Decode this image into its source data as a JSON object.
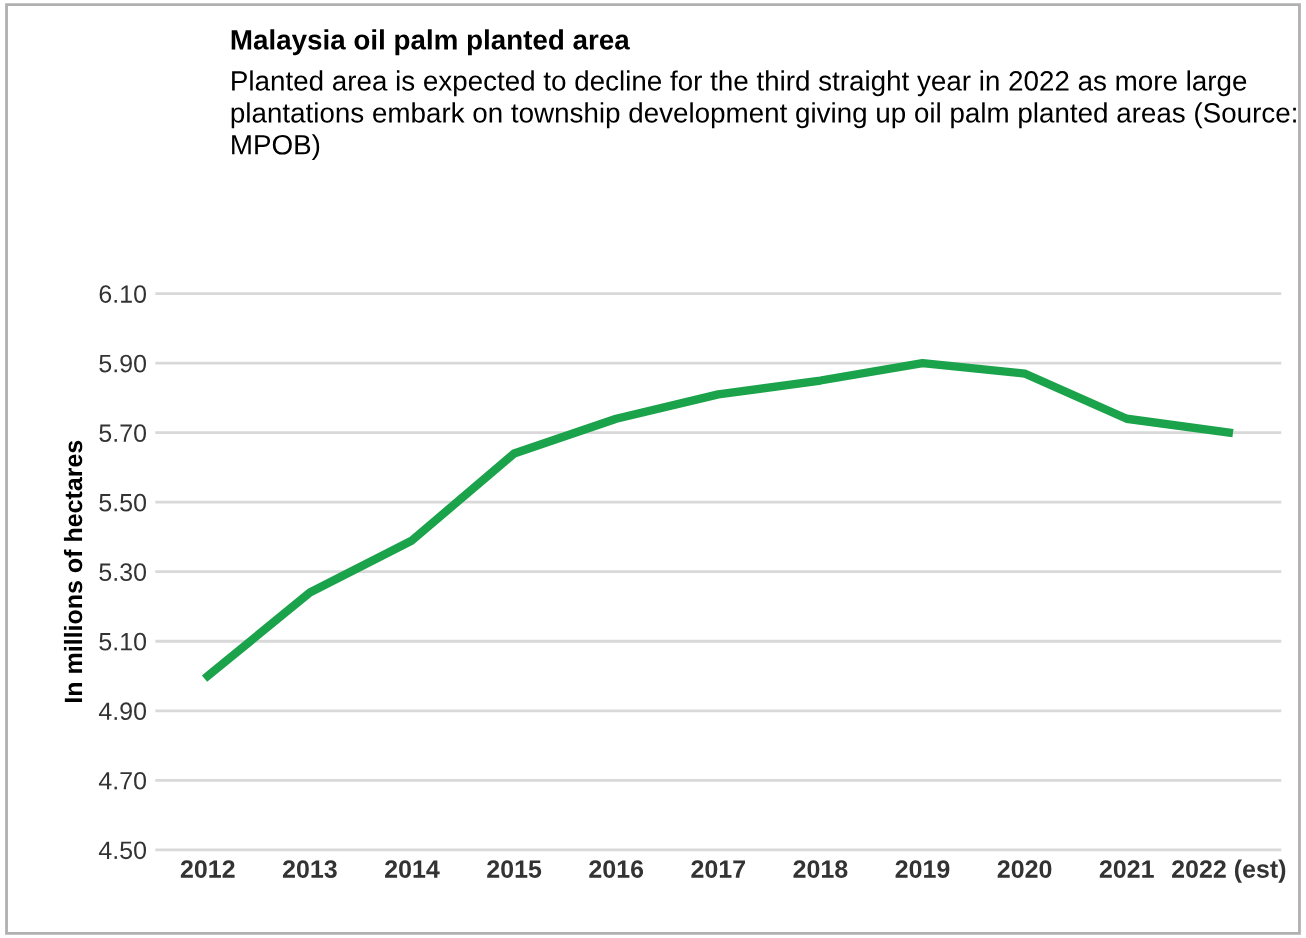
{
  "chart_data": {
    "type": "line",
    "title": "Malaysia oil palm planted area",
    "subtitle": "Planted area is expected to decline for the third straight year in 2022 as more large plantations embark on township development giving up oil palm planted areas (Source: MPOB)",
    "ylabel": "In millions of hectares",
    "categories": [
      "2012",
      "2013",
      "2014",
      "2015",
      "2016",
      "2017",
      "2018",
      "2019",
      "2020",
      "2021",
      "2022 (est)"
    ],
    "series": [
      {
        "color": "#1aa34a",
        "values": [
          5.0,
          5.24,
          5.39,
          5.64,
          5.74,
          5.81,
          5.85,
          5.9,
          5.87,
          5.74,
          5.7
        ]
      }
    ],
    "ylim": [
      4.5,
      6.1
    ],
    "yticks": [
      {
        "value": 4.5,
        "label": "4.50"
      },
      {
        "value": 4.7,
        "label": "4.70"
      },
      {
        "value": 4.9,
        "label": "4.90"
      },
      {
        "value": 5.1,
        "label": "5.10"
      },
      {
        "value": 5.3,
        "label": "5.30"
      },
      {
        "value": 5.5,
        "label": "5.50"
      },
      {
        "value": 5.7,
        "label": "5.70"
      },
      {
        "value": 5.9,
        "label": "5.90"
      },
      {
        "value": 6.1,
        "label": "6.10"
      }
    ],
    "grid": "y",
    "legend": false,
    "marker": "none",
    "line_style": "solid"
  }
}
